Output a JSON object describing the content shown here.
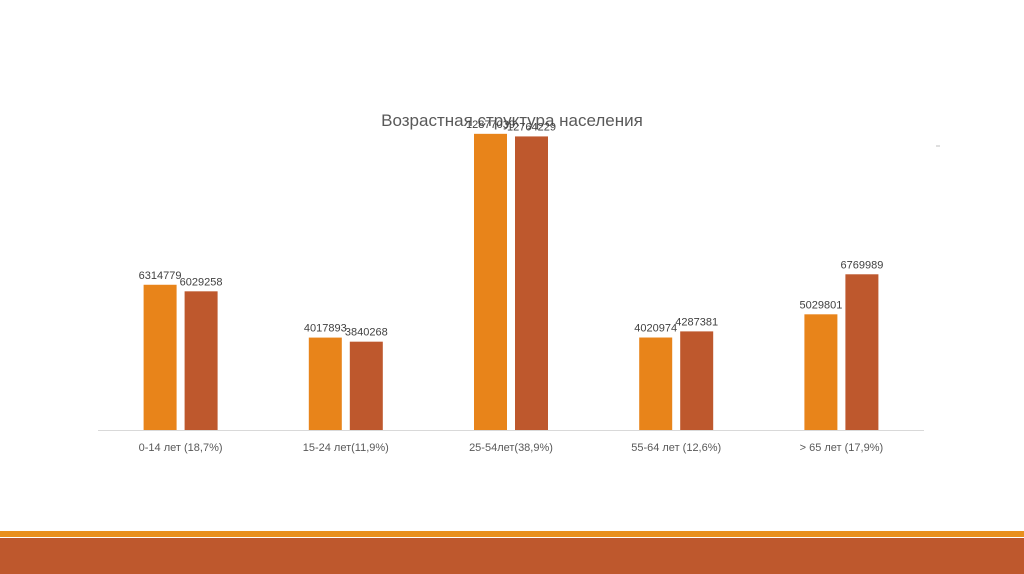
{
  "chart_data": {
    "type": "bar",
    "title": "Возрастная структура населения",
    "categories": [
      "0-14 лет (18,7%)",
      "15-24 лет(11,9%)",
      "25-54лет(38,9%)",
      "55-64 лет (12,6%)",
      "> 65 лет (17,9%)"
    ],
    "series": [
      {
        "values": [
          6314779,
          4017893,
          12877039,
          4020974,
          5029801
        ],
        "color": "#E8841A"
      },
      {
        "values": [
          6029258,
          3840268,
          12764229,
          4287381,
          6769989
        ],
        "color": "#BE582D"
      }
    ],
    "ylim": [
      0,
      14000000
    ],
    "grid": false,
    "legend": "none"
  },
  "theme": {
    "footer_stripe": "#E8901E",
    "footer_band": "#BE582D",
    "axis_color": "#D9D9D9"
  }
}
